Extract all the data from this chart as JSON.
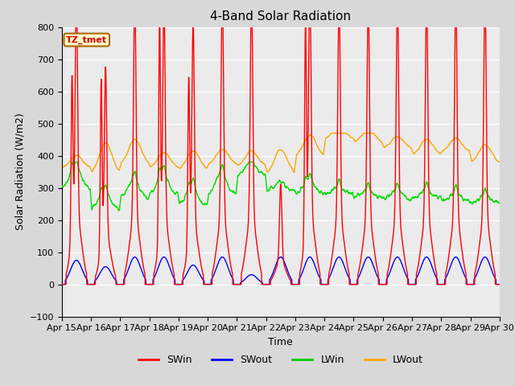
{
  "title": "4-Band Solar Radiation",
  "xlabel": "Time",
  "ylabel": "Solar Radiation (W/m2)",
  "ylim": [
    -100,
    800
  ],
  "xlim": [
    0,
    15
  ],
  "x_tick_labels": [
    "Apr 15",
    "Apr 16",
    "Apr 17",
    "Apr 18",
    "Apr 19",
    "Apr 20",
    "Apr 21",
    "Apr 22",
    "Apr 23",
    "Apr 24",
    "Apr 25",
    "Apr 26",
    "Apr 27",
    "Apr 28",
    "Apr 29",
    "Apr 30"
  ],
  "yticks": [
    -100,
    0,
    100,
    200,
    300,
    400,
    500,
    600,
    700,
    800
  ],
  "label_box": "TZ_tmet",
  "legend_labels": [
    "SWin",
    "SWout",
    "LWin",
    "LWout"
  ],
  "legend_colors": [
    "#ff0000",
    "#0000ff",
    "#00cc00",
    "#ffa500"
  ],
  "line_colors": {
    "SWin": "#ff0000",
    "SWout": "#0000ff",
    "LWin": "#00dd00",
    "LWout": "#ffa500"
  },
  "background_color": "#d8d8d8",
  "plot_bg_color": "#ebebeb",
  "title_fontsize": 11,
  "axis_fontsize": 9,
  "tick_fontsize": 8,
  "sw_peaks": [
    710,
    520,
    700,
    685,
    630,
    705,
    705,
    240,
    730,
    700,
    700,
    695,
    700,
    710,
    710
  ],
  "sw_secondary": [
    500,
    530,
    0,
    690,
    510,
    0,
    0,
    0,
    655,
    0,
    0,
    0,
    0,
    0,
    0
  ],
  "sw_out_peaks": [
    75,
    55,
    85,
    85,
    60,
    85,
    30,
    85,
    85,
    85,
    85,
    85,
    85,
    85,
    85
  ],
  "lwin_base": [
    300,
    235,
    270,
    280,
    245,
    280,
    340,
    290,
    285,
    280,
    270,
    265,
    270,
    260,
    255
  ],
  "lwin_day_bump": [
    60,
    50,
    50,
    60,
    55,
    60,
    30,
    25,
    25,
    15,
    15,
    20,
    15,
    15,
    10
  ],
  "lwout_base": [
    360,
    340,
    370,
    360,
    355,
    370,
    365,
    340,
    395,
    450,
    440,
    420,
    400,
    410,
    375
  ],
  "lwout_day_bump": [
    40,
    100,
    80,
    50,
    60,
    50,
    50,
    80,
    70,
    40,
    40,
    40,
    50,
    45,
    60
  ]
}
